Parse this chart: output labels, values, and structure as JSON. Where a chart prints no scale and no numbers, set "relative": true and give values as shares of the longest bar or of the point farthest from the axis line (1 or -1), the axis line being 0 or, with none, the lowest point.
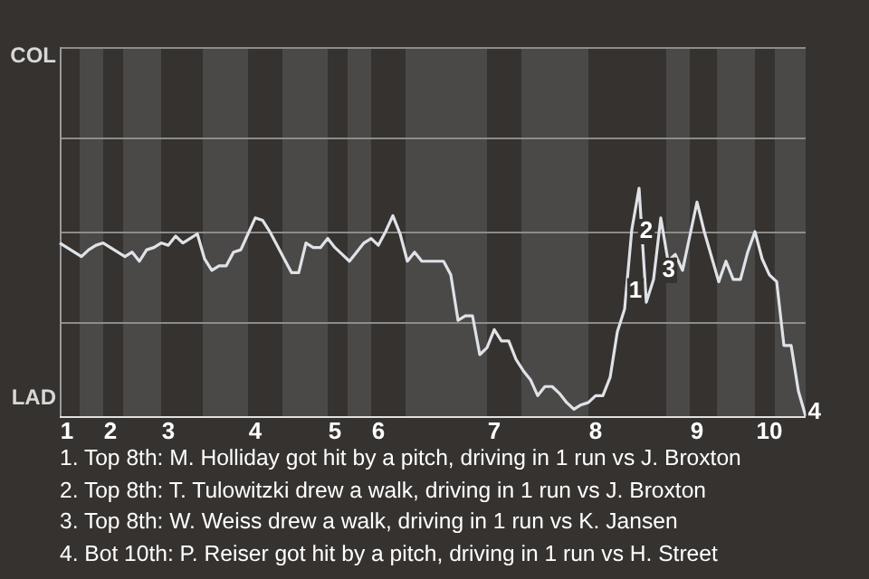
{
  "chart_data": {
    "type": "line",
    "relative": true,
    "ref_lines": [
      {
        "axis": "y",
        "value": 0.41,
        "color": "#8c8c8c"
      },
      {
        "axis": "y",
        "value": 0.81,
        "color": "#8c8c8c"
      },
      {
        "axis": "y",
        "value": 1.22,
        "color": "#8c8c8c"
      },
      {
        "axis": "y",
        "value": 1.62,
        "color": "#8c8c8c"
      }
    ],
    "categories": [
      null,
      "1",
      null,
      null,
      null,
      null,
      null,
      "2",
      null,
      null,
      null,
      null,
      null,
      null,
      null,
      "3",
      null,
      null,
      null,
      null,
      null,
      null,
      null,
      null,
      null,
      null,
      null,
      "4",
      null,
      null,
      null,
      null,
      null,
      null,
      null,
      null,
      null,
      null,
      "5",
      null,
      null,
      null,
      null,
      null,
      "6",
      null,
      null,
      null,
      null,
      null,
      null,
      null,
      null,
      null,
      null,
      null,
      null,
      null,
      null,
      null,
      "7",
      null,
      null,
      null,
      null,
      null,
      null,
      null,
      null,
      null,
      null,
      null,
      null,
      null,
      "8",
      null,
      null,
      null,
      null,
      null,
      null,
      null,
      null,
      null,
      null,
      null,
      null,
      null,
      "9",
      null,
      null,
      null,
      null,
      null,
      null,
      null,
      null,
      null,
      "10",
      null,
      null,
      null,
      null,
      null
    ],
    "series": [
      {
        "color": "#dfe3e8",
        "values": [
          0.76,
          0.74,
          0.72,
          0.7,
          0.73,
          0.75,
          0.76,
          0.74,
          0.72,
          0.7,
          0.72,
          0.68,
          0.73,
          0.74,
          0.76,
          0.75,
          0.79,
          0.76,
          0.78,
          0.8,
          0.69,
          0.64,
          0.66,
          0.66,
          0.72,
          0.73,
          0.8,
          0.87,
          0.86,
          0.81,
          0.75,
          0.69,
          0.63,
          0.63,
          0.76,
          0.74,
          0.74,
          0.78,
          0.74,
          0.71,
          0.68,
          0.72,
          0.76,
          0.78,
          0.75,
          0.81,
          0.88,
          0.8,
          0.68,
          0.72,
          0.68,
          0.68,
          0.68,
          0.68,
          0.62,
          0.42,
          0.44,
          0.44,
          0.27,
          0.3,
          0.38,
          0.33,
          0.33,
          0.25,
          0.2,
          0.16,
          0.09,
          0.13,
          0.13,
          0.1,
          0.06,
          0.03,
          0.05,
          0.06,
          0.09,
          0.09,
          0.17,
          0.37,
          0.47,
          0.82,
          1,
          0.5,
          0.6,
          0.87,
          0.68,
          0.71,
          0.64,
          0.79,
          0.94,
          0.81,
          0.7,
          0.59,
          0.68,
          0.6,
          0.6,
          0.72,
          0.81,
          0.69,
          0.62,
          0.59,
          0.31,
          0.31,
          0.11,
          0
        ]
      }
    ],
    "annotations": [
      "COL",
      "LAD",
      {
        "text": "1",
        "y": 0.55
      },
      {
        "text": "2",
        "y": 0.81
      },
      {
        "text": "3",
        "y": 0.64
      },
      {
        "text": "4",
        "y": 0
      },
      "1. Top 8th: M. Holliday got hit by a pitch, driving in 1 run vs J. Broxton",
      "2. Top 8th: T. Tulowitzki drew a walk, driving in 1 run vs J. Broxton",
      "3. Top 8th: W. Weiss drew a walk, driving in 1 run vs K. Jansen",
      "4. Bot 10th: P. Reiser got hit by a pitch, driving in 1 run vs H. Street"
    ]
  }
}
